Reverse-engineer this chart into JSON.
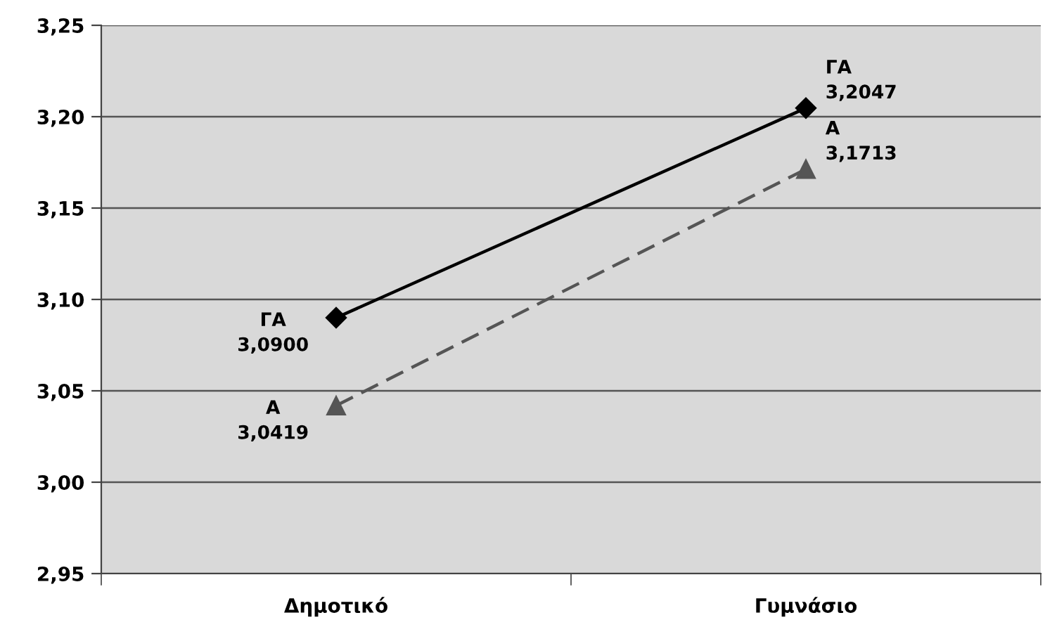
{
  "chart_data": {
    "type": "line",
    "categories": [
      "Δημοτικό",
      "Γυμνάσιο"
    ],
    "series": [
      {
        "name": "ΓΑ",
        "color": "#000000",
        "values": [
          3.09,
          3.2047
        ],
        "value_labels": [
          "3,0900",
          "3,2047"
        ],
        "marker": "diamond",
        "line_style": "solid"
      },
      {
        "name": "Α",
        "color": "#555555",
        "values": [
          3.0419,
          3.1713
        ],
        "value_labels": [
          "3,0419",
          "3,1713"
        ],
        "marker": "triangle",
        "line_style": "dashed"
      }
    ],
    "ylim": [
      2.95,
      3.25
    ],
    "yticks": [
      {
        "value": 2.95,
        "label": "2,95"
      },
      {
        "value": 3.0,
        "label": "3,00"
      },
      {
        "value": 3.05,
        "label": "3,05"
      },
      {
        "value": 3.1,
        "label": "3,10"
      },
      {
        "value": 3.15,
        "label": "3,15"
      },
      {
        "value": 3.2,
        "label": "3,20"
      },
      {
        "value": 3.25,
        "label": "3,25"
      }
    ],
    "grid": "y",
    "legend": false
  }
}
